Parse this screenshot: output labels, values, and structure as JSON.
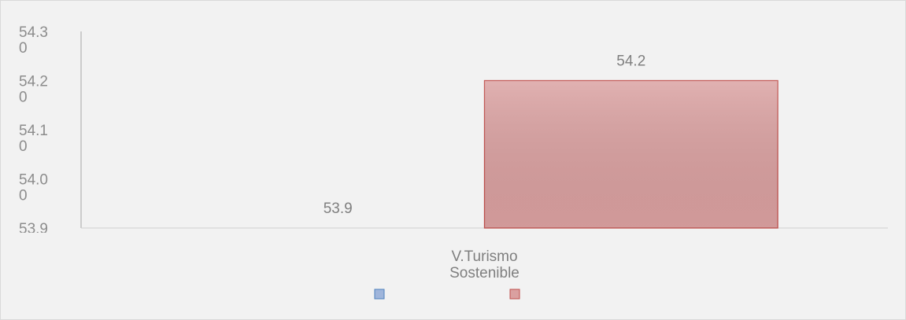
{
  "chart_data": {
    "type": "bar",
    "categories": [
      "V.Turismo Sostenible"
    ],
    "series": [
      {
        "color": "#9fb5db",
        "values": [
          53.9
        ]
      },
      {
        "color": "#daa0a0",
        "values": [
          54.2
        ]
      }
    ],
    "ylim": [
      53.9,
      54.3
    ],
    "yticks": [
      {
        "value": 53.9,
        "label": "53.90"
      },
      {
        "value": 54.0,
        "label": "54.00"
      },
      {
        "value": 54.1,
        "label": "54.10"
      },
      {
        "value": 54.2,
        "label": "54.20"
      },
      {
        "value": 54.3,
        "label": "54.30"
      }
    ],
    "grid": false
  }
}
